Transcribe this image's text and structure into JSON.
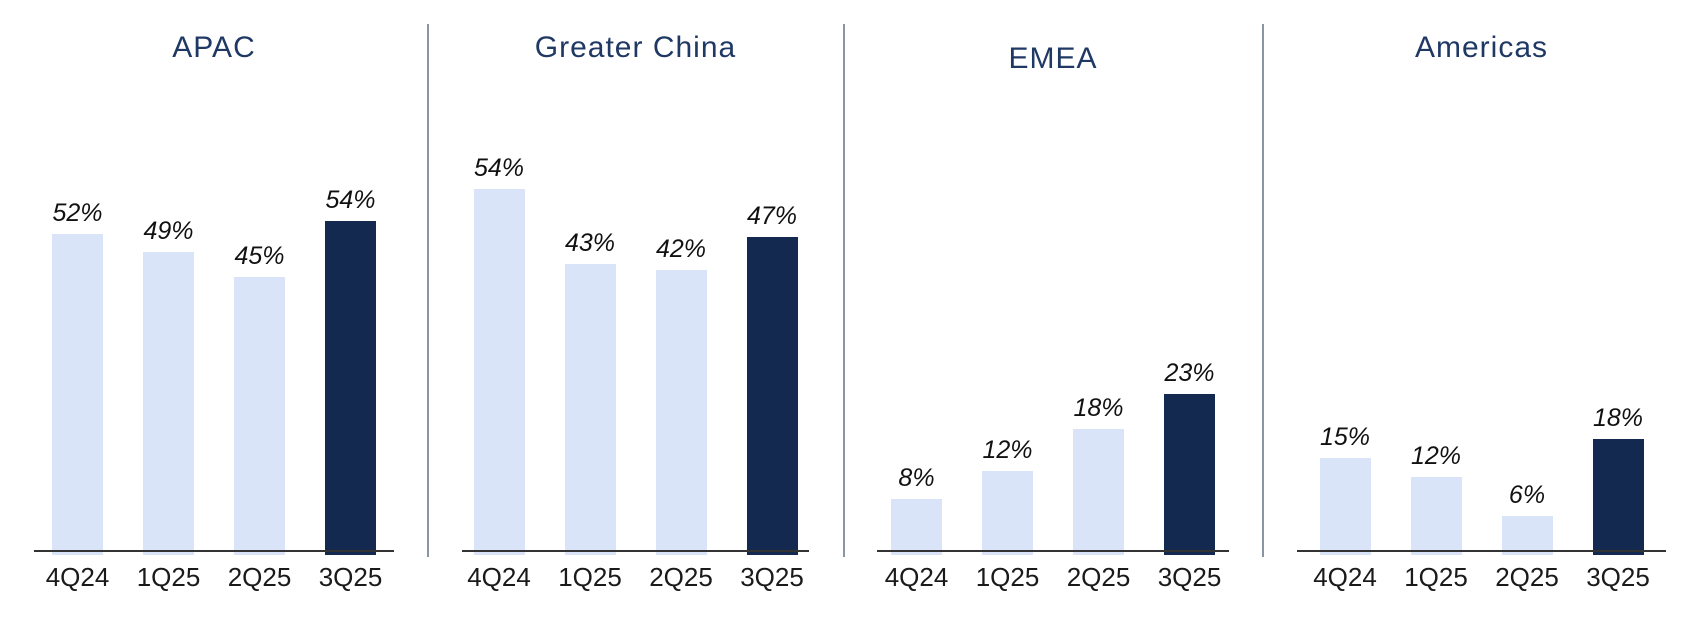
{
  "chart_data": [
    {
      "type": "bar",
      "title": "APAC",
      "categories": [
        "4Q24",
        "1Q25",
        "2Q25",
        "3Q25"
      ],
      "values": [
        52,
        49,
        45,
        54
      ],
      "labels": [
        "52%",
        "49%",
        "45%",
        "54%"
      ],
      "bar_styles": [
        "light",
        "light",
        "light",
        "dark"
      ],
      "xlabel": "",
      "ylabel": "",
      "ylim": [
        0,
        68
      ],
      "unit": "percent",
      "grid": false,
      "legend": "none"
    },
    {
      "type": "bar",
      "title": "Greater China",
      "categories": [
        "4Q24",
        "1Q25",
        "2Q25",
        "3Q25"
      ],
      "values": [
        54,
        43,
        42,
        47
      ],
      "labels": [
        "54%",
        "43%",
        "42%",
        "47%"
      ],
      "bar_styles": [
        "light",
        "light",
        "light",
        "dark"
      ],
      "xlabel": "",
      "ylabel": "",
      "ylim": [
        0,
        62
      ],
      "unit": "percent",
      "grid": false,
      "legend": "none"
    },
    {
      "type": "bar",
      "title": "EMEA",
      "categories": [
        "4Q24",
        "1Q25",
        "2Q25",
        "3Q25"
      ],
      "values": [
        8,
        12,
        18,
        23
      ],
      "labels": [
        "8%",
        "12%",
        "18%",
        "23%"
      ],
      "bar_styles": [
        "light",
        "light",
        "light",
        "dark"
      ],
      "xlabel": "",
      "ylabel": "",
      "ylim": [
        0,
        60
      ],
      "unit": "percent",
      "grid": false,
      "legend": "none"
    },
    {
      "type": "bar",
      "title": "Americas",
      "categories": [
        "4Q24",
        "1Q25",
        "2Q25",
        "3Q25"
      ],
      "values": [
        15,
        12,
        6,
        18
      ],
      "labels": [
        "15%",
        "12%",
        "6%",
        "18%"
      ],
      "bar_styles": [
        "light",
        "light",
        "light",
        "dark"
      ],
      "xlabel": "",
      "ylabel": "",
      "ylim": [
        0,
        65
      ],
      "unit": "percent",
      "grid": false,
      "legend": "none"
    }
  ],
  "colors": {
    "background": "#ffffff",
    "bar_light": "#D9E4F8",
    "bar_dark": "#13294F",
    "title_text": "#1F3864",
    "value_label_text": "#111111",
    "axis_label_text": "#1a1a1a",
    "axis_line": "#333333",
    "divider_line": "#8B96A5"
  }
}
